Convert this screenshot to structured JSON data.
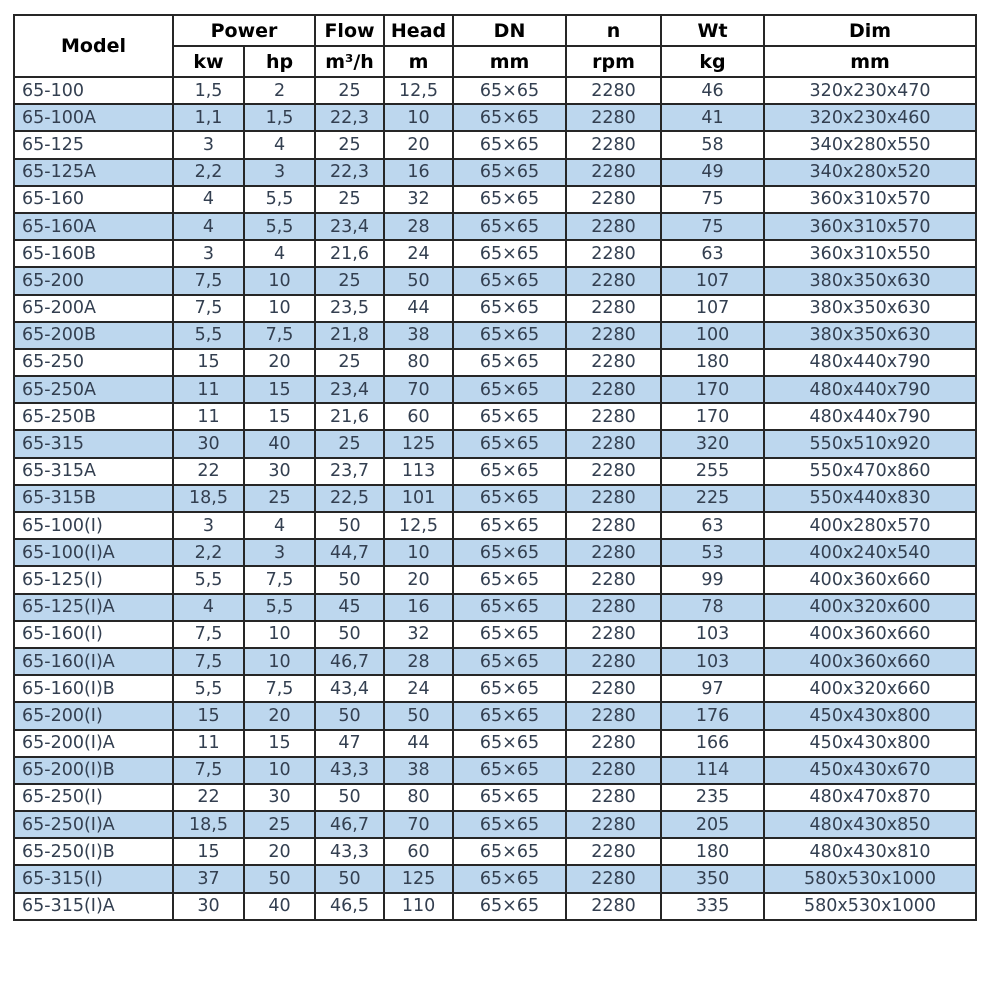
{
  "colors": {
    "row_alt_bg": "#bdd7ee",
    "border": "#262626",
    "data_text": "#333f50",
    "header_text": "#000000",
    "page_bg": "#ffffff"
  },
  "table": {
    "header": {
      "model": "Model",
      "power": "Power",
      "kw": "kw",
      "hp": "hp",
      "flow": "Flow",
      "flow_unit": "m³/h",
      "head": "Head",
      "head_unit": "m",
      "dn": "DN",
      "dn_unit": "mm",
      "n": "n",
      "n_unit": "rpm",
      "wt": "Wt",
      "wt_unit": "kg",
      "dim": "Dim",
      "dim_unit": "mm"
    },
    "column_keys": [
      "model",
      "kw",
      "hp",
      "flow",
      "head",
      "dn",
      "n",
      "wt",
      "dim"
    ],
    "rows": [
      [
        "65-100",
        "1,5",
        "2",
        "25",
        "12,5",
        "65×65",
        "2280",
        "46",
        "320x230x470"
      ],
      [
        "65-100A",
        "1,1",
        "1,5",
        "22,3",
        "10",
        "65×65",
        "2280",
        "41",
        "320x230x460"
      ],
      [
        "65-125",
        "3",
        "4",
        "25",
        "20",
        "65×65",
        "2280",
        "58",
        "340x280x550"
      ],
      [
        "65-125A",
        "2,2",
        "3",
        "22,3",
        "16",
        "65×65",
        "2280",
        "49",
        "340x280x520"
      ],
      [
        "65-160",
        "4",
        "5,5",
        "25",
        "32",
        "65×65",
        "2280",
        "75",
        "360x310x570"
      ],
      [
        "65-160A",
        "4",
        "5,5",
        "23,4",
        "28",
        "65×65",
        "2280",
        "75",
        "360x310x570"
      ],
      [
        "65-160B",
        "3",
        "4",
        "21,6",
        "24",
        "65×65",
        "2280",
        "63",
        "360x310x550"
      ],
      [
        "65-200",
        "7,5",
        "10",
        "25",
        "50",
        "65×65",
        "2280",
        "107",
        "380x350x630"
      ],
      [
        "65-200A",
        "7,5",
        "10",
        "23,5",
        "44",
        "65×65",
        "2280",
        "107",
        "380x350x630"
      ],
      [
        "65-200B",
        "5,5",
        "7,5",
        "21,8",
        "38",
        "65×65",
        "2280",
        "100",
        "380x350x630"
      ],
      [
        "65-250",
        "15",
        "20",
        "25",
        "80",
        "65×65",
        "2280",
        "180",
        "480x440x790"
      ],
      [
        "65-250A",
        "11",
        "15",
        "23,4",
        "70",
        "65×65",
        "2280",
        "170",
        "480x440x790"
      ],
      [
        "65-250B",
        "11",
        "15",
        "21,6",
        "60",
        "65×65",
        "2280",
        "170",
        "480x440x790"
      ],
      [
        "65-315",
        "30",
        "40",
        "25",
        "125",
        "65×65",
        "2280",
        "320",
        "550x510x920"
      ],
      [
        "65-315A",
        "22",
        "30",
        "23,7",
        "113",
        "65×65",
        "2280",
        "255",
        "550x470x860"
      ],
      [
        "65-315B",
        "18,5",
        "25",
        "22,5",
        "101",
        "65×65",
        "2280",
        "225",
        "550x440x830"
      ],
      [
        "65-100(I)",
        "3",
        "4",
        "50",
        "12,5",
        "65×65",
        "2280",
        "63",
        "400x280x570"
      ],
      [
        "65-100(I)A",
        "2,2",
        "3",
        "44,7",
        "10",
        "65×65",
        "2280",
        "53",
        "400x240x540"
      ],
      [
        "65-125(I)",
        "5,5",
        "7,5",
        "50",
        "20",
        "65×65",
        "2280",
        "99",
        "400x360x660"
      ],
      [
        "65-125(I)A",
        "4",
        "5,5",
        "45",
        "16",
        "65×65",
        "2280",
        "78",
        "400x320x600"
      ],
      [
        "65-160(I)",
        "7,5",
        "10",
        "50",
        "32",
        "65×65",
        "2280",
        "103",
        "400x360x660"
      ],
      [
        "65-160(I)A",
        "7,5",
        "10",
        "46,7",
        "28",
        "65×65",
        "2280",
        "103",
        "400x360x660"
      ],
      [
        "65-160(I)B",
        "5,5",
        "7,5",
        "43,4",
        "24",
        "65×65",
        "2280",
        "97",
        "400x320x660"
      ],
      [
        "65-200(I)",
        "15",
        "20",
        "50",
        "50",
        "65×65",
        "2280",
        "176",
        "450x430x800"
      ],
      [
        "65-200(I)A",
        "11",
        "15",
        "47",
        "44",
        "65×65",
        "2280",
        "166",
        "450x430x800"
      ],
      [
        "65-200(I)B",
        "7,5",
        "10",
        "43,3",
        "38",
        "65×65",
        "2280",
        "114",
        "450x430x670"
      ],
      [
        "65-250(I)",
        "22",
        "30",
        "50",
        "80",
        "65×65",
        "2280",
        "235",
        "480x470x870"
      ],
      [
        "65-250(I)A",
        "18,5",
        "25",
        "46,7",
        "70",
        "65×65",
        "2280",
        "205",
        "480x430x850"
      ],
      [
        "65-250(I)B",
        "15",
        "20",
        "43,3",
        "60",
        "65×65",
        "2280",
        "180",
        "480x430x810"
      ],
      [
        "65-315(I)",
        "37",
        "50",
        "50",
        "125",
        "65×65",
        "2280",
        "350",
        "580x530x1000"
      ],
      [
        "65-315(I)A",
        "30",
        "40",
        "46,5",
        "110",
        "65×65",
        "2280",
        "335",
        "580x530x1000"
      ]
    ]
  }
}
